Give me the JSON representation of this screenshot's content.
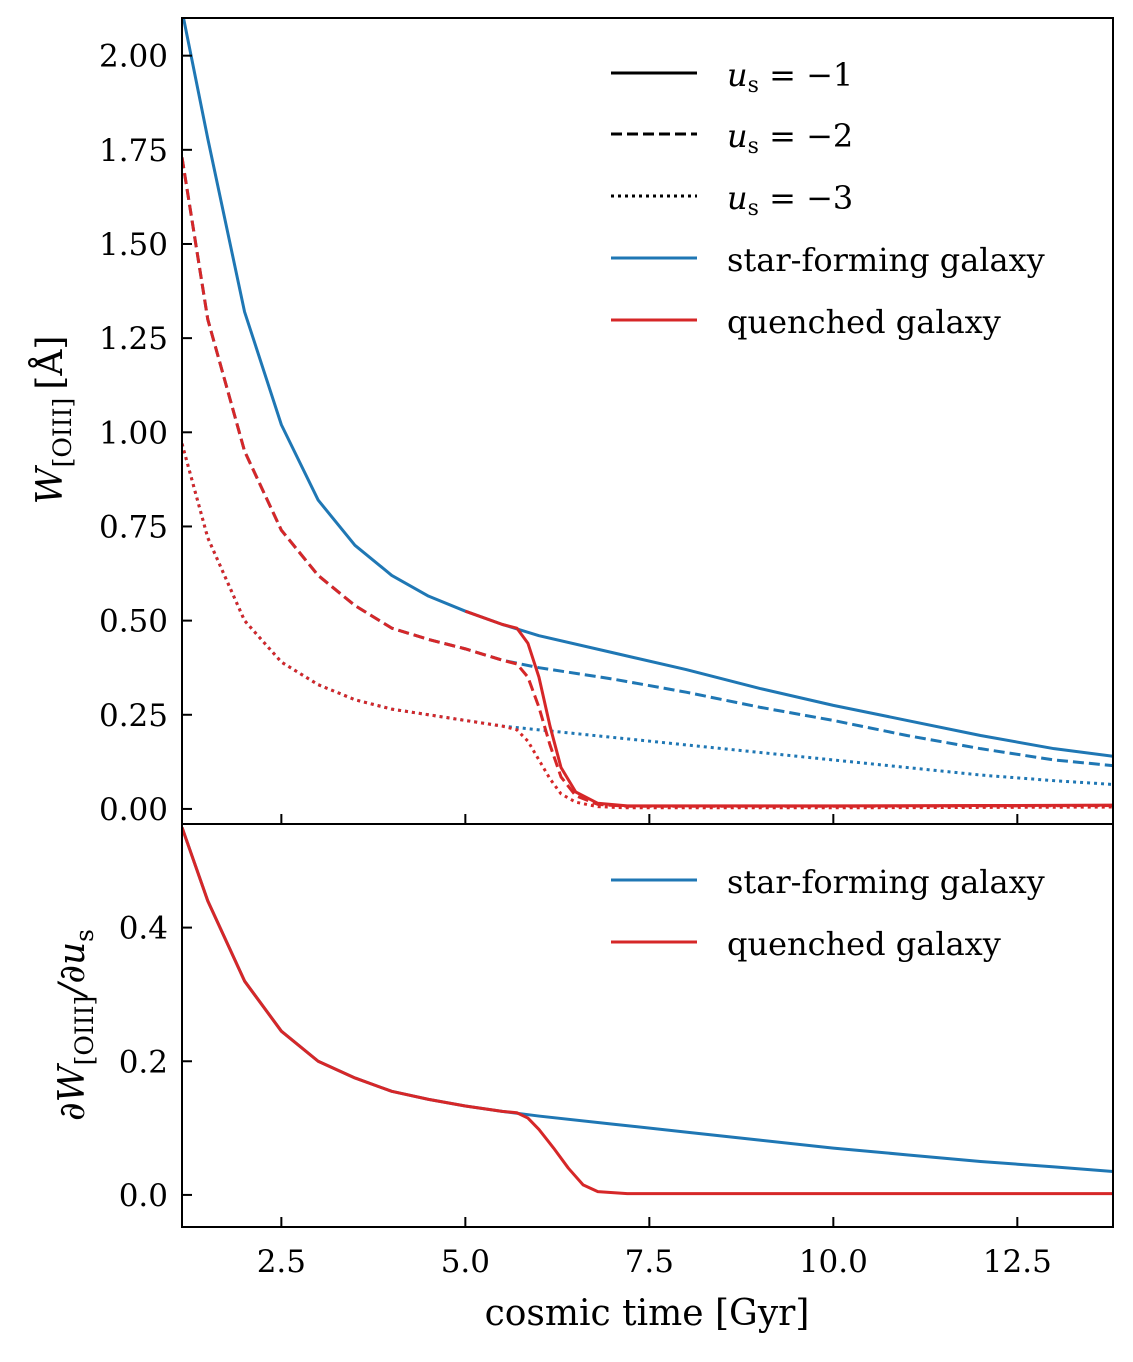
{
  "colors": {
    "star_forming": "#1f77b4",
    "quenched": "#d62728",
    "axis": "#000000",
    "background": "#ffffff"
  },
  "chart_data": [
    {
      "type": "line",
      "panel": "top",
      "ylabel": "W[OIII] [Å]",
      "ylabel_parts": {
        "main": "W",
        "sub": "[OIII]",
        "unit": "[Å]"
      },
      "xlim": [
        1.15,
        13.8
      ],
      "ylim": [
        -0.04,
        2.1
      ],
      "yticks": [
        0.0,
        0.25,
        0.5,
        0.75,
        1.0,
        1.25,
        1.5,
        1.75,
        2.0
      ],
      "ytick_labels": [
        "0.00",
        "0.25",
        "0.50",
        "0.75",
        "1.00",
        "1.25",
        "1.50",
        "1.75",
        "2.00"
      ],
      "xticks": [
        2.5,
        5.0,
        7.5,
        10.0,
        12.5
      ],
      "legend_placement": "top-right",
      "legend": [
        {
          "label": "us = −1",
          "label_parts": {
            "var": "u",
            "sub": "s",
            "rest": " = −1"
          },
          "style": "solid",
          "color": "#000000"
        },
        {
          "label": "us = −2",
          "label_parts": {
            "var": "u",
            "sub": "s",
            "rest": " = −2"
          },
          "style": "dashed",
          "color": "#000000"
        },
        {
          "label": "us = −3",
          "label_parts": {
            "var": "u",
            "sub": "s",
            "rest": " = −3"
          },
          "style": "dotted",
          "color": "#000000"
        },
        {
          "label": "star-forming galaxy",
          "style": "solid",
          "color": "#1f77b4"
        },
        {
          "label": "quenched galaxy",
          "style": "solid",
          "color": "#d62728"
        }
      ],
      "series": [
        {
          "galaxy": "star-forming",
          "us": -1,
          "style": "solid",
          "color": "#1f77b4",
          "points": [
            [
              1.15,
              2.12
            ],
            [
              1.5,
              1.78
            ],
            [
              2.0,
              1.32
            ],
            [
              2.5,
              1.02
            ],
            [
              3.0,
              0.82
            ],
            [
              3.5,
              0.7
            ],
            [
              4.0,
              0.62
            ],
            [
              4.5,
              0.565
            ],
            [
              5.0,
              0.525
            ],
            [
              5.5,
              0.49
            ],
            [
              6.0,
              0.46
            ],
            [
              7.0,
              0.415
            ],
            [
              8.0,
              0.37
            ],
            [
              9.0,
              0.32
            ],
            [
              10.0,
              0.275
            ],
            [
              11.0,
              0.235
            ],
            [
              12.0,
              0.195
            ],
            [
              13.0,
              0.16
            ],
            [
              13.8,
              0.14
            ]
          ]
        },
        {
          "galaxy": "star-forming",
          "us": -2,
          "style": "dashed",
          "color": "#1f77b4",
          "points": [
            [
              1.15,
              1.73
            ],
            [
              1.5,
              1.3
            ],
            [
              2.0,
              0.95
            ],
            [
              2.5,
              0.74
            ],
            [
              3.0,
              0.62
            ],
            [
              3.5,
              0.54
            ],
            [
              4.0,
              0.48
            ],
            [
              4.5,
              0.45
            ],
            [
              5.0,
              0.425
            ],
            [
              5.5,
              0.395
            ],
            [
              6.0,
              0.375
            ],
            [
              7.0,
              0.345
            ],
            [
              8.0,
              0.31
            ],
            [
              9.0,
              0.27
            ],
            [
              10.0,
              0.235
            ],
            [
              11.0,
              0.195
            ],
            [
              12.0,
              0.16
            ],
            [
              13.0,
              0.13
            ],
            [
              13.8,
              0.115
            ]
          ]
        },
        {
          "galaxy": "star-forming",
          "us": -3,
          "style": "dotted",
          "color": "#1f77b4",
          "points": [
            [
              1.15,
              0.97
            ],
            [
              1.5,
              0.72
            ],
            [
              2.0,
              0.5
            ],
            [
              2.5,
              0.39
            ],
            [
              3.0,
              0.33
            ],
            [
              3.5,
              0.29
            ],
            [
              4.0,
              0.265
            ],
            [
              4.5,
              0.25
            ],
            [
              5.0,
              0.235
            ],
            [
              5.5,
              0.22
            ],
            [
              6.0,
              0.21
            ],
            [
              7.0,
              0.19
            ],
            [
              8.0,
              0.17
            ],
            [
              9.0,
              0.15
            ],
            [
              10.0,
              0.13
            ],
            [
              11.0,
              0.11
            ],
            [
              12.0,
              0.09
            ],
            [
              13.0,
              0.075
            ],
            [
              13.8,
              0.065
            ]
          ]
        },
        {
          "galaxy": "quenched",
          "us": -1,
          "style": "solid",
          "color": "#d62728",
          "points": [
            [
              5.0,
              0.525
            ],
            [
              5.5,
              0.49
            ],
            [
              5.7,
              0.48
            ],
            [
              5.85,
              0.44
            ],
            [
              6.0,
              0.35
            ],
            [
              6.15,
              0.22
            ],
            [
              6.3,
              0.11
            ],
            [
              6.5,
              0.045
            ],
            [
              6.8,
              0.015
            ],
            [
              7.2,
              0.008
            ],
            [
              8.0,
              0.008
            ],
            [
              10.0,
              0.008
            ],
            [
              12.0,
              0.009
            ],
            [
              13.8,
              0.01
            ]
          ]
        },
        {
          "galaxy": "quenched",
          "us": -2,
          "style": "dashed",
          "color": "#d62728",
          "points": [
            [
              1.15,
              1.73
            ],
            [
              1.5,
              1.3
            ],
            [
              2.0,
              0.95
            ],
            [
              2.5,
              0.74
            ],
            [
              3.0,
              0.62
            ],
            [
              3.5,
              0.54
            ],
            [
              4.0,
              0.48
            ],
            [
              4.5,
              0.45
            ],
            [
              5.0,
              0.425
            ],
            [
              5.5,
              0.395
            ],
            [
              5.7,
              0.385
            ],
            [
              5.85,
              0.35
            ],
            [
              6.0,
              0.27
            ],
            [
              6.15,
              0.17
            ],
            [
              6.3,
              0.085
            ],
            [
              6.5,
              0.035
            ],
            [
              6.8,
              0.012
            ],
            [
              7.2,
              0.007
            ],
            [
              8.0,
              0.007
            ],
            [
              10.0,
              0.007
            ],
            [
              12.0,
              0.008
            ],
            [
              13.8,
              0.009
            ]
          ]
        },
        {
          "galaxy": "quenched",
          "us": -3,
          "style": "dotted",
          "color": "#d62728",
          "points": [
            [
              1.15,
              0.97
            ],
            [
              1.5,
              0.72
            ],
            [
              2.0,
              0.5
            ],
            [
              2.5,
              0.39
            ],
            [
              3.0,
              0.33
            ],
            [
              3.5,
              0.29
            ],
            [
              4.0,
              0.265
            ],
            [
              4.5,
              0.25
            ],
            [
              5.0,
              0.235
            ],
            [
              5.5,
              0.22
            ],
            [
              5.7,
              0.21
            ],
            [
              5.85,
              0.18
            ],
            [
              6.0,
              0.13
            ],
            [
              6.15,
              0.08
            ],
            [
              6.3,
              0.04
            ],
            [
              6.5,
              0.018
            ],
            [
              6.8,
              0.006
            ],
            [
              7.2,
              0.003
            ],
            [
              8.0,
              0.003
            ],
            [
              10.0,
              0.003
            ],
            [
              12.0,
              0.004
            ],
            [
              13.8,
              0.005
            ]
          ]
        }
      ]
    },
    {
      "type": "line",
      "panel": "bottom",
      "ylabel": "∂W[OIII]/∂us",
      "ylabel_parts": {
        "pre": "∂W",
        "sub1": "[OIII]",
        "mid": "/∂u",
        "sub2": "s"
      },
      "xlabel": "cosmic time [Gyr]",
      "xlim": [
        1.15,
        13.8
      ],
      "ylim": [
        -0.048,
        0.555
      ],
      "yticks": [
        0.0,
        0.2,
        0.4
      ],
      "ytick_labels": [
        "0.0",
        "0.2",
        "0.4"
      ],
      "xticks": [
        2.5,
        5.0,
        7.5,
        10.0,
        12.5
      ],
      "xtick_labels": [
        "2.5",
        "5.0",
        "7.5",
        "10.0",
        "12.5"
      ],
      "legend_placement": "top-right",
      "legend": [
        {
          "label": "star-forming galaxy",
          "style": "solid",
          "color": "#1f77b4"
        },
        {
          "label": "quenched galaxy",
          "style": "solid",
          "color": "#d62728"
        }
      ],
      "series": [
        {
          "galaxy": "star-forming",
          "style": "solid",
          "color": "#1f77b4",
          "points": [
            [
              1.15,
              0.55
            ],
            [
              1.5,
              0.44
            ],
            [
              2.0,
              0.32
            ],
            [
              2.5,
              0.245
            ],
            [
              3.0,
              0.2
            ],
            [
              3.5,
              0.175
            ],
            [
              4.0,
              0.155
            ],
            [
              4.5,
              0.143
            ],
            [
              5.0,
              0.133
            ],
            [
              5.5,
              0.125
            ],
            [
              6.0,
              0.118
            ],
            [
              7.0,
              0.106
            ],
            [
              8.0,
              0.094
            ],
            [
              9.0,
              0.082
            ],
            [
              10.0,
              0.07
            ],
            [
              11.0,
              0.06
            ],
            [
              12.0,
              0.05
            ],
            [
              13.0,
              0.042
            ],
            [
              13.8,
              0.035
            ]
          ]
        },
        {
          "galaxy": "quenched",
          "style": "solid",
          "color": "#d62728",
          "points": [
            [
              1.15,
              0.55
            ],
            [
              1.5,
              0.44
            ],
            [
              2.0,
              0.32
            ],
            [
              2.5,
              0.245
            ],
            [
              3.0,
              0.2
            ],
            [
              3.5,
              0.175
            ],
            [
              4.0,
              0.155
            ],
            [
              4.5,
              0.143
            ],
            [
              5.0,
              0.133
            ],
            [
              5.5,
              0.125
            ],
            [
              5.7,
              0.123
            ],
            [
              5.85,
              0.115
            ],
            [
              6.0,
              0.098
            ],
            [
              6.2,
              0.07
            ],
            [
              6.4,
              0.04
            ],
            [
              6.6,
              0.015
            ],
            [
              6.8,
              0.005
            ],
            [
              7.2,
              0.002
            ],
            [
              8.0,
              0.002
            ],
            [
              10.0,
              0.002
            ],
            [
              12.0,
              0.002
            ],
            [
              13.8,
              0.002
            ]
          ]
        }
      ]
    }
  ]
}
